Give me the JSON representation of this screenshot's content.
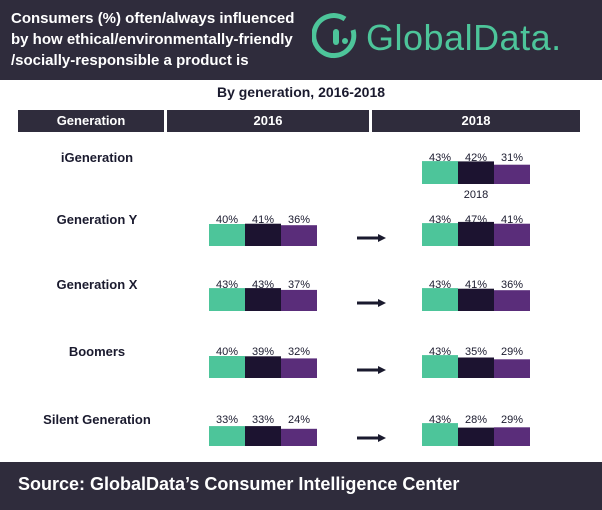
{
  "header": {
    "title_lines": [
      "Consumers (%) often/always influenced",
      "by how ethical/environmentally-friendly",
      "/socially-responsible a product is"
    ],
    "logo_text": "GlobalData."
  },
  "subtitle": "By generation, 2016-2018",
  "columns": {
    "generation": "Generation",
    "y2016": "2016",
    "y2018": "2018"
  },
  "source": "Source:  GlobalData’s Consumer Intelligence Center",
  "colors": {
    "header_bg": "#2f2c3c",
    "series": [
      "#4dc59a",
      "#1c1330",
      "#5a2d7a"
    ],
    "text": "#1a1a2e"
  },
  "chart_data": {
    "type": "bar",
    "title": "Consumers (%) often/always influenced by how ethical/environmentally-friendly/socially-responsible a product is",
    "subtitle": "By generation, 2016-2018",
    "categories": [
      "iGeneration",
      "Generation Y",
      "Generation X",
      "Boomers",
      "Silent Generation"
    ],
    "years": [
      "2016",
      "2018"
    ],
    "values_2016": [
      null,
      [
        40,
        41,
        36
      ],
      [
        43,
        43,
        37
      ],
      [
        40,
        39,
        32
      ],
      [
        33,
        33,
        24
      ]
    ],
    "values_2018": [
      [
        43,
        42,
        31
      ],
      [
        43,
        47,
        41
      ],
      [
        43,
        41,
        36
      ],
      [
        43,
        35,
        29
      ],
      [
        43,
        28,
        29
      ]
    ],
    "annotations": [
      {
        "category": "iGeneration",
        "text": "2018"
      }
    ]
  }
}
